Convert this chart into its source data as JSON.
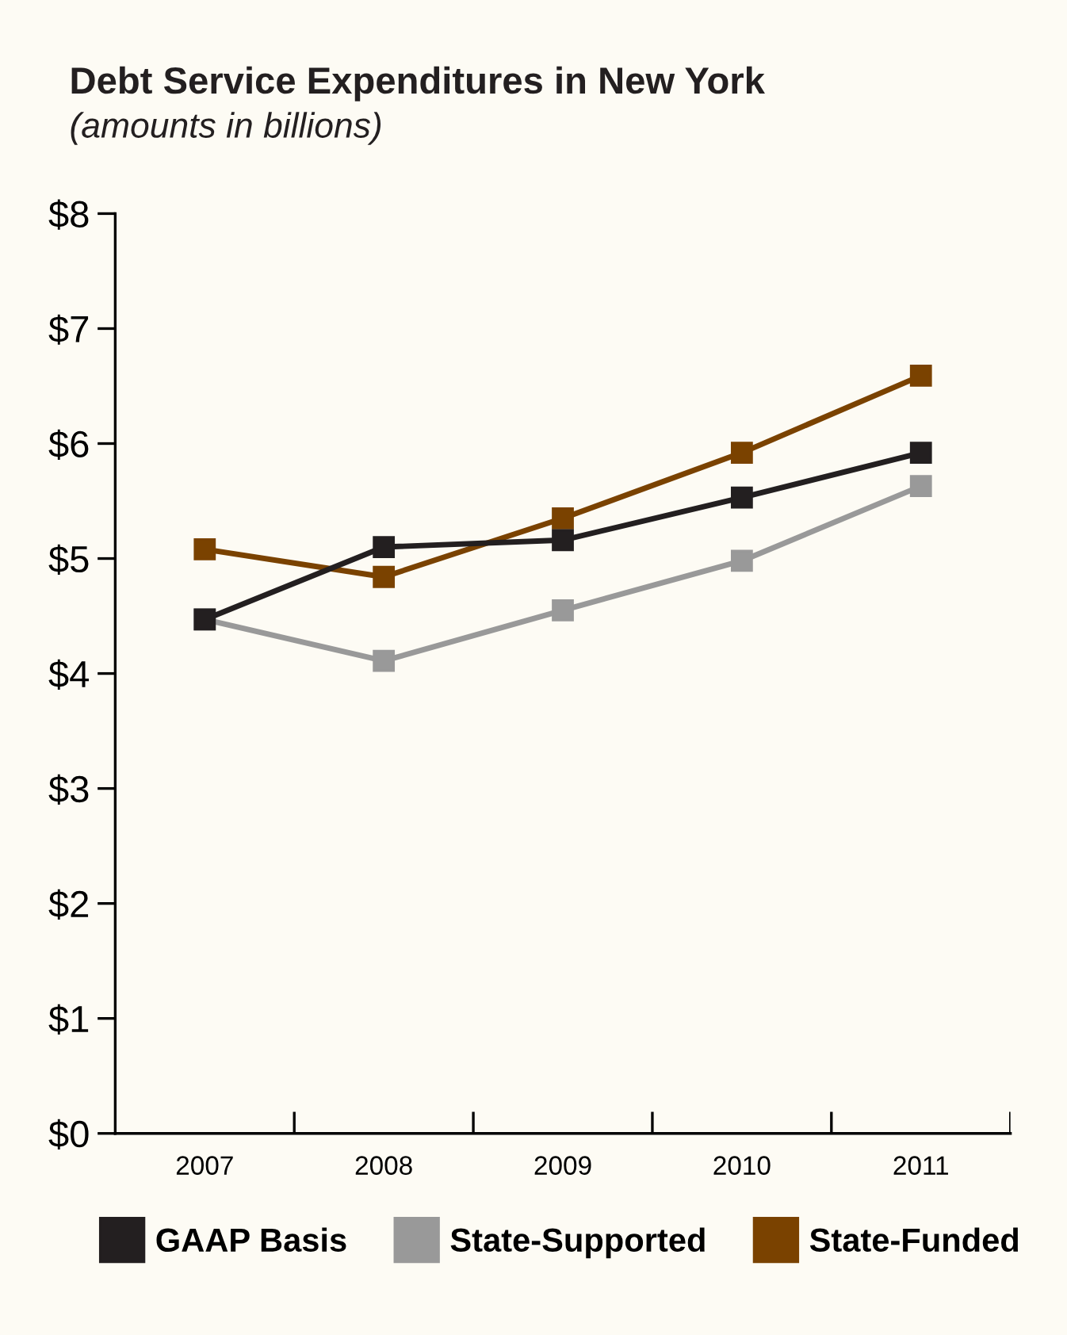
{
  "chart_data": {
    "type": "line",
    "title": "Debt Service Expenditures in New York",
    "subtitle": "(amounts in billions)",
    "categories": [
      "2007",
      "2008",
      "2009",
      "2010",
      "2011"
    ],
    "series": [
      {
        "name": "GAAP Basis",
        "color": "#231f20",
        "values": [
          4.47,
          5.1,
          5.16,
          5.53,
          5.92
        ]
      },
      {
        "name": "State-Supported",
        "color": "#999999",
        "values": [
          4.47,
          4.11,
          4.55,
          4.98,
          5.63
        ]
      },
      {
        "name": "State-Funded",
        "color": "#7a4200",
        "values": [
          5.08,
          4.84,
          5.35,
          5.92,
          6.59
        ]
      }
    ],
    "ylim": [
      0,
      8
    ],
    "yticks": [
      {
        "value": 0,
        "label": "$0"
      },
      {
        "value": 1,
        "label": "$1"
      },
      {
        "value": 2,
        "label": "$2"
      },
      {
        "value": 3,
        "label": "$3"
      },
      {
        "value": 4,
        "label": "$4"
      },
      {
        "value": 5,
        "label": "$5"
      },
      {
        "value": 6,
        "label": "$6"
      },
      {
        "value": 7,
        "label": "$7"
      },
      {
        "value": 8,
        "label": "$8"
      }
    ],
    "grid": false,
    "legend": "bottom",
    "marker": "square",
    "line_style": "solid"
  }
}
